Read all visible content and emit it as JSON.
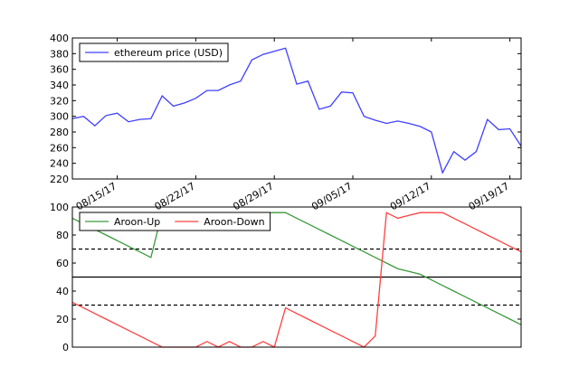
{
  "chart_data": [
    {
      "type": "line",
      "x": [
        "08/11/17",
        "08/12/17",
        "08/13/17",
        "08/14/17",
        "08/15/17",
        "08/16/17",
        "08/17/17",
        "08/18/17",
        "08/19/17",
        "08/20/17",
        "08/21/17",
        "08/22/17",
        "08/23/17",
        "08/24/17",
        "08/25/17",
        "08/26/17",
        "08/27/17",
        "08/28/17",
        "08/29/17",
        "08/30/17",
        "08/31/17",
        "09/01/17",
        "09/02/17",
        "09/03/17",
        "09/04/17",
        "09/05/17",
        "09/06/17",
        "09/07/17",
        "09/08/17",
        "09/09/17",
        "09/10/17",
        "09/11/17",
        "09/12/17",
        "09/13/17",
        "09/14/17",
        "09/15/17",
        "09/16/17",
        "09/17/17",
        "09/18/17",
        "09/19/17",
        "09/20/17"
      ],
      "series": [
        {
          "name": "ethereum price (USD)",
          "color": "#4040ff",
          "values": [
            297,
            300,
            288,
            301,
            304,
            293,
            296,
            297,
            326,
            313,
            317,
            323,
            333,
            333,
            340,
            345,
            372,
            379,
            383,
            387,
            341,
            345,
            309,
            313,
            331,
            330,
            300,
            295,
            291,
            294,
            291,
            287,
            280,
            228,
            255,
            244,
            255,
            296,
            283,
            284,
            262
          ]
        }
      ],
      "xlim": [
        "08/11/17",
        "09/20/17"
      ],
      "xticks": [
        "08/15/17",
        "08/22/17",
        "08/29/17",
        "09/05/17",
        "09/12/17",
        "09/19/17"
      ],
      "ylim": [
        220,
        400
      ],
      "yticks": [
        220,
        240,
        260,
        280,
        300,
        320,
        340,
        360,
        380,
        400
      ],
      "legend": "upper-left"
    },
    {
      "type": "line",
      "x": [
        "08/11/17",
        "08/12/17",
        "08/13/17",
        "08/14/17",
        "08/15/17",
        "08/16/17",
        "08/17/17",
        "08/18/17",
        "08/19/17",
        "08/20/17",
        "08/21/17",
        "08/22/17",
        "08/23/17",
        "08/24/17",
        "08/25/17",
        "08/26/17",
        "08/27/17",
        "08/28/17",
        "08/29/17",
        "08/30/17",
        "08/31/17",
        "09/01/17",
        "09/02/17",
        "09/03/17",
        "09/04/17",
        "09/05/17",
        "09/06/17",
        "09/07/17",
        "09/08/17",
        "09/09/17",
        "09/10/17",
        "09/11/17",
        "09/12/17",
        "09/13/17",
        "09/14/17",
        "09/15/17",
        "09/16/17",
        "09/17/17",
        "09/18/17",
        "09/19/17",
        "09/20/17"
      ],
      "series": [
        {
          "name": "Aroon-Up",
          "color": "#3a9a3a",
          "values": [
            92,
            88,
            84,
            80,
            76,
            72,
            68,
            64,
            96,
            96,
            96,
            96,
            96,
            96,
            96,
            96,
            96,
            96,
            96,
            96,
            92,
            88,
            84,
            80,
            76,
            72,
            68,
            64,
            60,
            56,
            54,
            52,
            48,
            44,
            40,
            36,
            32,
            28,
            24,
            20,
            16
          ]
        },
        {
          "name": "Aroon-Down",
          "color": "#ff4040",
          "values": [
            32,
            28,
            24,
            20,
            16,
            12,
            8,
            4,
            0,
            0,
            0,
            0,
            4,
            0,
            4,
            0,
            0,
            4,
            0,
            28,
            24,
            20,
            16,
            12,
            8,
            4,
            0,
            8,
            96,
            92,
            94,
            96,
            96,
            96,
            92,
            88,
            84,
            80,
            76,
            72,
            68
          ]
        }
      ],
      "xlim": [
        "08/11/17",
        "09/20/17"
      ],
      "ylim": [
        0,
        100
      ],
      "yticks": [
        0,
        20,
        40,
        60,
        80,
        100
      ],
      "hlines": [
        {
          "value": 70,
          "style": "dashed"
        },
        {
          "value": 50,
          "style": "solid"
        },
        {
          "value": 30,
          "style": "dashed"
        }
      ],
      "legend": "upper-left"
    }
  ]
}
